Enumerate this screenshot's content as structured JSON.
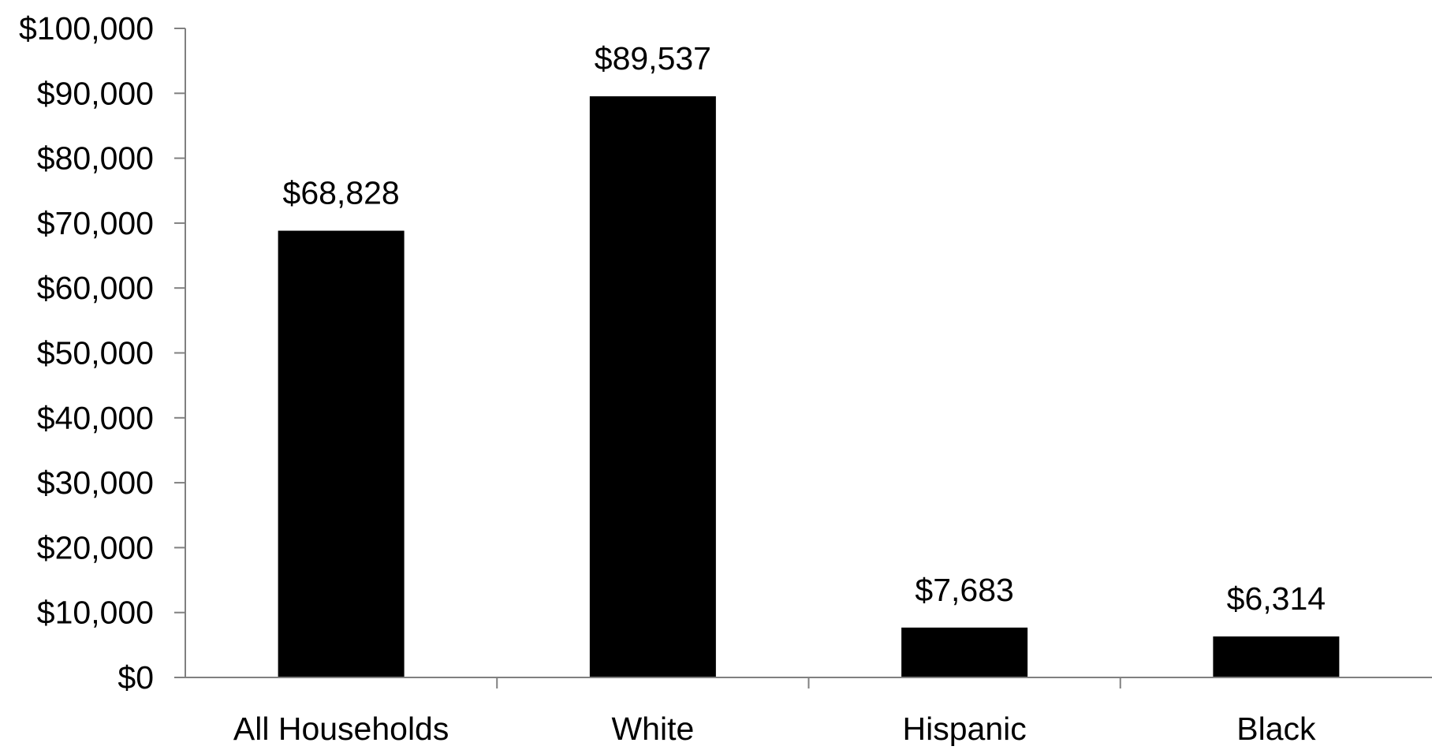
{
  "chart_data": {
    "type": "bar",
    "title": "",
    "xlabel": "",
    "ylabel": "",
    "categories": [
      "All Households",
      "White",
      "Hispanic",
      "Black"
    ],
    "values": [
      68828,
      89537,
      7683,
      6314
    ],
    "data_labels": [
      "$68,828",
      "$89,537",
      "$7,683",
      "$6,314"
    ],
    "ylim": [
      0,
      100000
    ],
    "y_ticks": [
      0,
      10000,
      20000,
      30000,
      40000,
      50000,
      60000,
      70000,
      80000,
      90000,
      100000
    ],
    "y_tick_labels": [
      "$0",
      "$10,000",
      "$20,000",
      "$30,000",
      "$40,000",
      "$50,000",
      "$60,000",
      "$70,000",
      "$80,000",
      "$90,000",
      "$100,000"
    ],
    "grid": false,
    "legend": "none",
    "bar_color": "#000000",
    "axis_color": "#808080"
  }
}
